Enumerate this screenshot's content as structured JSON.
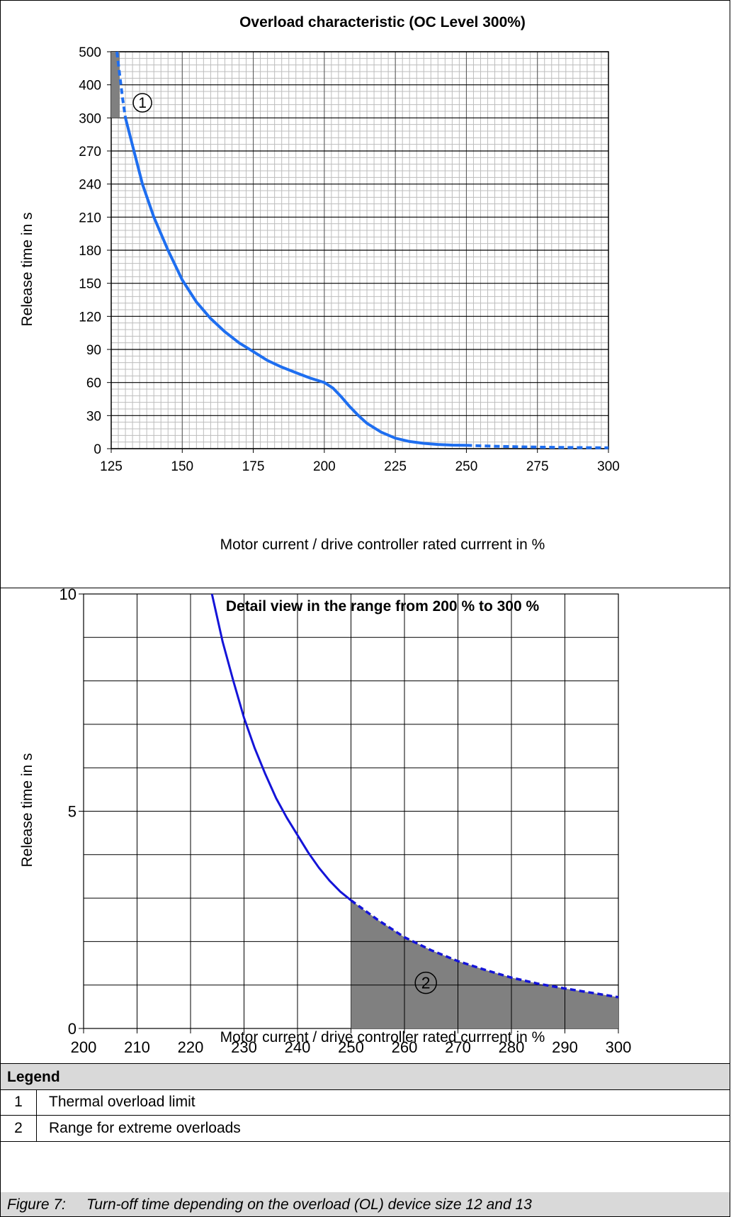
{
  "chart_data": [
    {
      "type": "line",
      "title": "Overload characteristic (OC Level 300%)",
      "xlabel": "Motor current / drive controller rated currrent in %",
      "ylabel": "Release time in s",
      "xlim": [
        125,
        300
      ],
      "xticks": [
        125,
        150,
        175,
        200,
        225,
        250,
        275,
        300
      ],
      "yticks": [
        0,
        30,
        60,
        90,
        120,
        150,
        180,
        210,
        240,
        270,
        300,
        400,
        500
      ],
      "grid": true,
      "series_solid": {
        "x": [
          130,
          133,
          136,
          140,
          145,
          150,
          155,
          160,
          165,
          170,
          175,
          180,
          185,
          190,
          195,
          200,
          203,
          206,
          209,
          212,
          215,
          220,
          225,
          230,
          235,
          240,
          245,
          250
        ],
        "y": [
          300,
          270,
          240,
          210,
          180,
          153,
          133,
          118,
          106,
          96,
          88,
          80,
          74,
          69,
          64,
          60,
          55,
          47,
          38,
          30,
          23,
          15,
          9.5,
          6.5,
          4.8,
          3.8,
          3.2,
          3.0
        ]
      },
      "series_dashed_start": {
        "x": [
          127,
          128,
          129,
          130
        ],
        "y": [
          500,
          430,
          360,
          300
        ]
      },
      "series_dashed_end": {
        "x": [
          250,
          260,
          270,
          280,
          290,
          300
        ],
        "y": [
          3.0,
          2.2,
          1.6,
          1.2,
          0.95,
          0.75
        ]
      },
      "shaded_region": {
        "x": [
          125,
          128
        ],
        "y": [
          300,
          500
        ]
      },
      "marker": {
        "label": "1",
        "x": 131,
        "y": 350
      }
    },
    {
      "type": "line",
      "title": "Detail view in the range from 200 % to 300 %",
      "xlabel": "Motor current / drive controller rated currrent in %",
      "ylabel": "Release time in s",
      "xlim": [
        200,
        300
      ],
      "ylim": [
        0,
        10
      ],
      "xticks": [
        200,
        210,
        220,
        230,
        240,
        250,
        260,
        270,
        280,
        290,
        300
      ],
      "yticks": [
        0,
        5,
        10
      ],
      "grid": true,
      "series_solid": {
        "x": [
          224,
          226,
          228,
          230,
          232,
          234,
          236,
          238,
          240,
          242,
          244,
          246,
          248,
          250
        ],
        "y": [
          10.0,
          8.9,
          8.0,
          7.15,
          6.45,
          5.85,
          5.3,
          4.85,
          4.45,
          4.05,
          3.7,
          3.4,
          3.15,
          2.95
        ]
      },
      "series_dashed": {
        "x": [
          250,
          255,
          260,
          265,
          270,
          275,
          280,
          285,
          290,
          295,
          300
        ],
        "y": [
          2.95,
          2.5,
          2.1,
          1.8,
          1.55,
          1.35,
          1.17,
          1.03,
          0.92,
          0.82,
          0.72
        ]
      },
      "shaded_region": {
        "xmin": 250,
        "xmax": 300
      },
      "marker": {
        "label": "2",
        "x": 264,
        "y": 1.05
      }
    }
  ],
  "legend": {
    "heading": "Legend",
    "items": [
      {
        "num": "1",
        "text": "Thermal overload limit"
      },
      {
        "num": "2",
        "text": "Range for extreme overloads"
      }
    ]
  },
  "caption": {
    "label": "Figure 7:",
    "text": "Turn-off time depending on the overload (OL) device size 12 and 13"
  },
  "colors": {
    "curve_top": "#1e6ef0",
    "curve_bottom": "#1414d8",
    "shade": "#808080",
    "header_bg": "#d9d9d9"
  }
}
